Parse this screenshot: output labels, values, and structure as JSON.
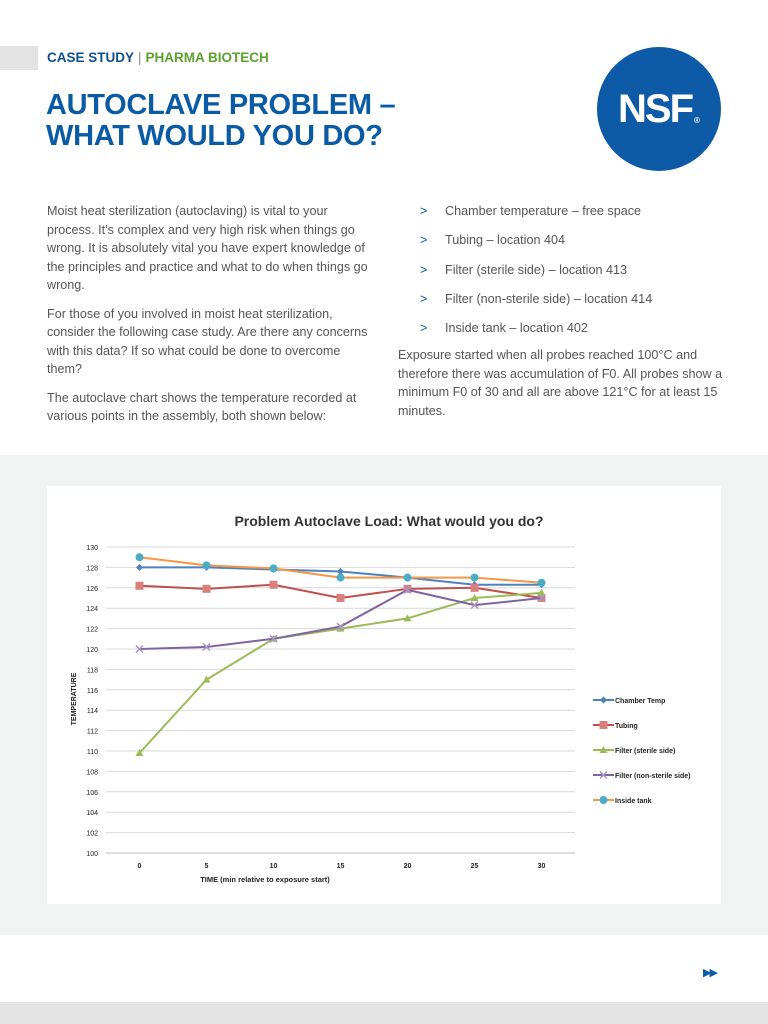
{
  "header": {
    "kicker_primary": "CASE STUDY",
    "kicker_separator": "|",
    "kicker_secondary": "PHARMA BIOTECH",
    "title_line1": "AUTOCLAVE PROBLEM –",
    "title_line2": "WHAT WOULD YOU DO?",
    "logo_text": "NSF",
    "logo_mark": "®"
  },
  "left_column": [
    "Moist heat sterilization (autoclaving) is vital to your process. It’s complex and very high risk when things go wrong. It is absolutely vital you have expert knowledge of the principles and practice and what to do when things go wrong.",
    "For those of you involved in moist heat sterilization, consider the following case study. Are there any concerns with this data? If so what could be done to overcome them?",
    "The autoclave chart shows the temperature recorded at various points in the assembly, both shown below:"
  ],
  "right_column": {
    "bullet": ">",
    "items": [
      "Chamber temperature – free space",
      "Tubing – location 404",
      "Filter (sterile side) – location 413",
      "Filter (non-sterile side) – location 414",
      "Inside tank – location 402"
    ],
    "paragraph": "Exposure started when all probes reached 100°C and therefore there was accumulation of F0. All probes show a minimum F0 of 30 and all are above 121°C for at least 15 minutes."
  },
  "footer": {
    "next_icon": "▶▶"
  },
  "chart_data": {
    "type": "line",
    "title": "Problem Autoclave Load: What would you do?",
    "xlabel": "TIME (min relative to exposure start)",
    "ylabel": "TEMPERATURE",
    "categories": [
      "0",
      "5",
      "10",
      "15",
      "20",
      "25",
      "30"
    ],
    "ylim": [
      100,
      130
    ],
    "yticks": [
      100,
      102,
      104,
      106,
      108,
      110,
      112,
      114,
      116,
      118,
      120,
      122,
      124,
      126,
      128,
      130
    ],
    "grid": "horizontal",
    "legend": "right",
    "series": [
      {
        "name": "Chamber Temp",
        "color": "#4f81bd",
        "marker": "diamond",
        "markerColor": "#4f81bd",
        "values": [
          128,
          128,
          127.8,
          127.6,
          127,
          126.3,
          126.3
        ]
      },
      {
        "name": "Tubing",
        "color": "#c0504d",
        "marker": "square",
        "markerColor": "#d9807d",
        "values": [
          126.2,
          125.9,
          126.3,
          125,
          125.9,
          126,
          125
        ]
      },
      {
        "name": "Filter (sterile side)",
        "color": "#9bbb59",
        "marker": "triangle",
        "markerColor": "#9bbb59",
        "values": [
          109.8,
          117,
          121,
          122,
          123,
          125,
          125.5
        ]
      },
      {
        "name": "Filter (non-sterile side)",
        "color": "#8064a2",
        "marker": "x",
        "markerColor": "#a996c4",
        "values": [
          120,
          120.2,
          121,
          122.2,
          125.8,
          124.3,
          125
        ]
      },
      {
        "name": "Inside tank",
        "color": "#f79646",
        "marker": "circle",
        "markerColor": "#4bacc6",
        "values": [
          129,
          128.2,
          127.9,
          127,
          127,
          127,
          126.5
        ]
      }
    ]
  }
}
